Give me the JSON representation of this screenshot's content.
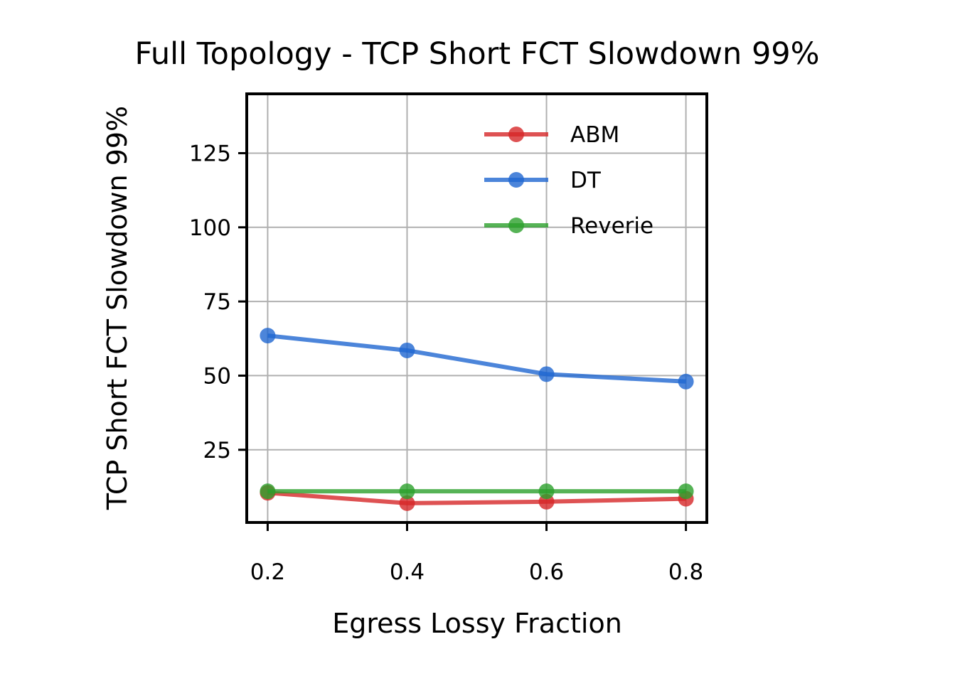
{
  "chart_data": {
    "type": "line",
    "title": "Full Topology - TCP Short FCT Slowdown 99%",
    "xlabel": "Egress Lossy Fraction",
    "ylabel": "TCP Short FCT Slowdown 99%",
    "x": [
      0.2,
      0.4,
      0.6,
      0.8
    ],
    "x_tick_labels": [
      "0.2",
      "0.4",
      "0.6",
      "0.8"
    ],
    "y_ticks": [
      25,
      50,
      75,
      100,
      125
    ],
    "y_tick_labels": [
      "25",
      "50",
      "75",
      "100",
      "125"
    ],
    "xlim": [
      0.17,
      0.83
    ],
    "ylim": [
      0.5,
      145
    ],
    "grid": true,
    "legend_position": "top-right",
    "series": [
      {
        "name": "ABM",
        "color": "#d62728",
        "values": [
          10.5,
          7.0,
          7.5,
          8.5
        ]
      },
      {
        "name": "DT",
        "color": "#1f66d1",
        "values": [
          63.5,
          58.5,
          50.5,
          48.0
        ]
      },
      {
        "name": "Reverie",
        "color": "#2ca02c",
        "values": [
          11.0,
          11.0,
          11.0,
          11.0
        ]
      }
    ]
  }
}
